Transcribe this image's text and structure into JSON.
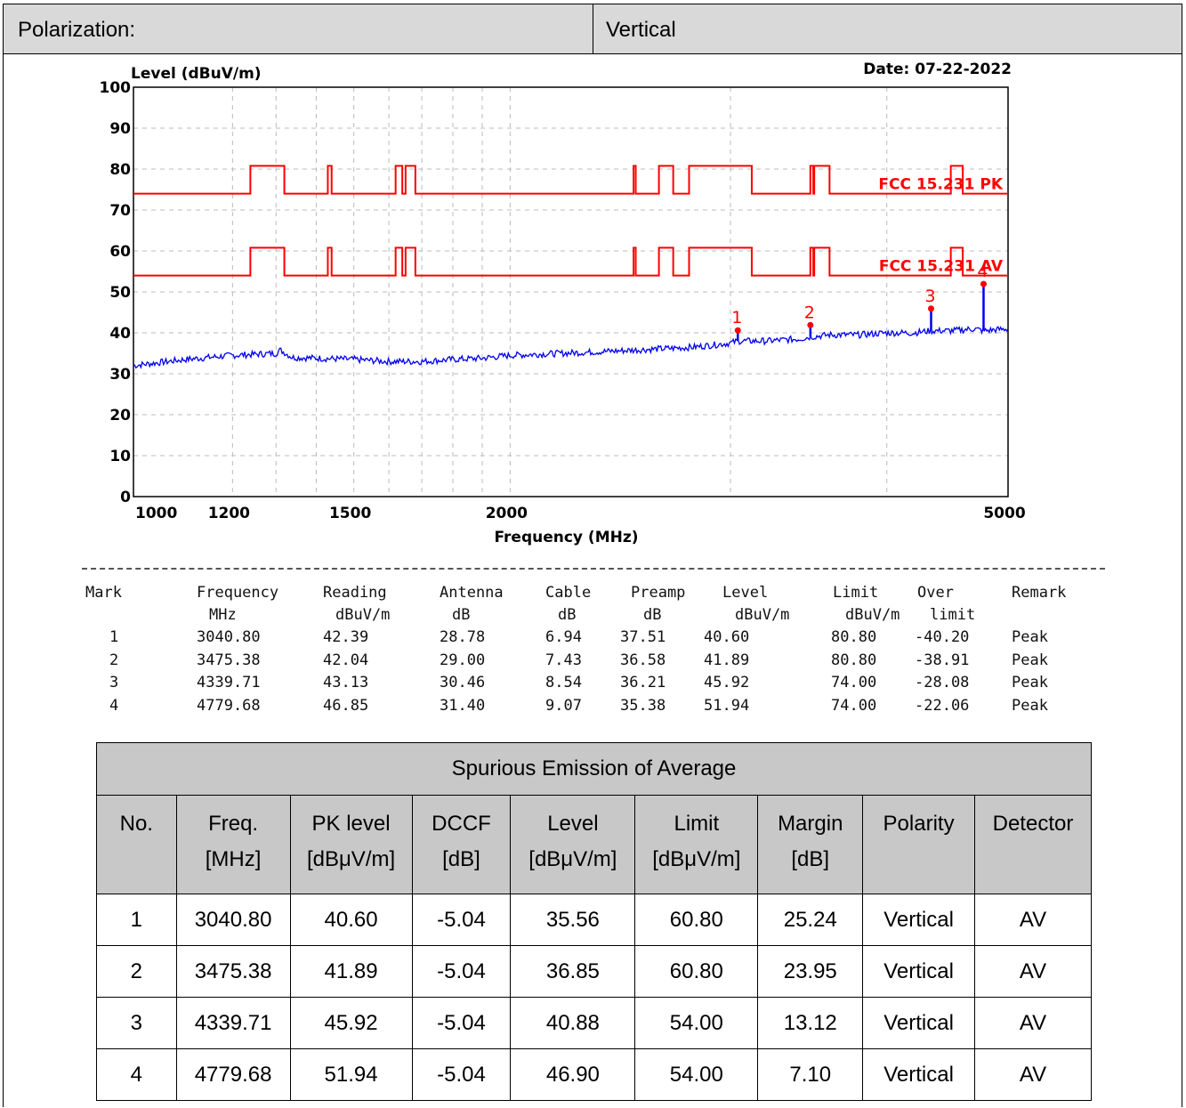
{
  "header": {
    "label": "Polarization:",
    "value": "Vertical"
  },
  "chart_data": {
    "type": "line",
    "ylabel": "Level (dBuV/m)",
    "xlabel": "Frequency (MHz)",
    "date": "Date: 07-22-2022",
    "xscale": "log",
    "xlim": [
      1000,
      5000
    ],
    "ylim": [
      0,
      100
    ],
    "grid": true,
    "yticks": [
      0,
      10,
      20,
      30,
      40,
      50,
      60,
      70,
      80,
      90,
      100
    ],
    "xtick_labels": [
      "1000",
      "1200",
      "1500",
      "2000",
      "5000"
    ],
    "xticks": [
      1000,
      1200,
      1500,
      2000,
      5000
    ],
    "xgrid": [
      1000,
      1200,
      1300,
      1400,
      1500,
      1600,
      1700,
      1800,
      1900,
      2000,
      3000,
      4000,
      5000
    ],
    "limit_pk_label": "FCC 15.231 PK",
    "limit_av_label": "FCC 15.231 AV",
    "colors": {
      "limit": "#ff0000",
      "trace": "#0000ee",
      "marker": "#ff0000"
    },
    "limit_pk": {
      "base": 74.0,
      "high": 80.8,
      "bands": [
        [
          1240,
          1320
        ],
        [
          1430,
          1440
        ],
        [
          1620,
          1640
        ],
        [
          1650,
          1680
        ],
        [
          2510,
          2520
        ],
        [
          2630,
          2700
        ],
        [
          2780,
          3120
        ],
        [
          3475,
          3494
        ],
        [
          3500,
          3600
        ],
        [
          4500,
          4600
        ]
      ],
      "dips": [
        [
          2320,
          2510
        ],
        [
          2520,
          2630
        ],
        [
          2700,
          2780
        ],
        [
          3120,
          3475
        ]
      ]
    },
    "trace": {
      "points": [
        [
          1000,
          32
        ],
        [
          1100,
          33.5
        ],
        [
          1200,
          34.5
        ],
        [
          1300,
          35
        ],
        [
          1310,
          35.8
        ],
        [
          1340,
          34
        ],
        [
          1500,
          33.5
        ],
        [
          1600,
          33
        ],
        [
          1700,
          33
        ],
        [
          1800,
          33.5
        ],
        [
          1900,
          33.8
        ],
        [
          2000,
          34.5
        ],
        [
          2200,
          35
        ],
        [
          2400,
          35.5
        ],
        [
          2600,
          36
        ],
        [
          2800,
          36.5
        ],
        [
          3000,
          37.5
        ],
        [
          3040,
          38
        ],
        [
          3200,
          38
        ],
        [
          3400,
          38.5
        ],
        [
          3475,
          39
        ],
        [
          3600,
          39.5
        ],
        [
          3800,
          39.5
        ],
        [
          4000,
          40
        ],
        [
          4200,
          40
        ],
        [
          4339,
          40.5
        ],
        [
          4500,
          40.5
        ],
        [
          4700,
          41
        ],
        [
          4779,
          40.5
        ],
        [
          5000,
          41
        ]
      ],
      "spikes": [
        [
          3040.8,
          40.6
        ],
        [
          3475.38,
          41.89
        ],
        [
          4339.71,
          45.92
        ],
        [
          4779.68,
          51.94
        ]
      ]
    },
    "markers": [
      {
        "label": "1",
        "freq": 3040.8,
        "level": 40.6
      },
      {
        "label": "2",
        "freq": 3475.38,
        "level": 41.89
      },
      {
        "label": "3",
        "freq": 4339.71,
        "level": 45.92
      },
      {
        "label": "4",
        "freq": 4779.68,
        "level": 51.94
      }
    ]
  },
  "mark_table": {
    "headers": [
      [
        "Mark",
        ""
      ],
      [
        "Frequency",
        "MHz"
      ],
      [
        "Reading",
        "dBuV/m"
      ],
      [
        "Antenna",
        "dB"
      ],
      [
        "Cable",
        "dB"
      ],
      [
        "Preamp",
        "dB"
      ],
      [
        "Level",
        "dBuV/m"
      ],
      [
        "Limit",
        "dBuV/m"
      ],
      [
        "Over",
        "limit"
      ],
      [
        "Remark",
        ""
      ]
    ],
    "rows": [
      [
        "1",
        "3040.80",
        "42.39",
        "28.78",
        "6.94",
        "37.51",
        "40.60",
        "80.80",
        "-40.20",
        "Peak"
      ],
      [
        "2",
        "3475.38",
        "42.04",
        "29.00",
        "7.43",
        "36.58",
        "41.89",
        "80.80",
        "-38.91",
        "Peak"
      ],
      [
        "3",
        "4339.71",
        "43.13",
        "30.46",
        "8.54",
        "36.21",
        "45.92",
        "74.00",
        "-28.08",
        "Peak"
      ],
      [
        "4",
        "4779.68",
        "46.85",
        "31.40",
        "9.07",
        "35.38",
        "51.94",
        "74.00",
        "-22.06",
        "Peak"
      ]
    ]
  },
  "avg_table": {
    "title": "Spurious Emission of Average",
    "headers": [
      [
        "No.",
        ""
      ],
      [
        "Freq.",
        "[MHz]"
      ],
      [
        "PK level",
        "[dBμV/m]"
      ],
      [
        "DCCF",
        "[dB]"
      ],
      [
        "Level",
        "[dBμV/m]"
      ],
      [
        "Limit",
        "[dBμV/m]"
      ],
      [
        "Margin",
        "[dB]"
      ],
      [
        "Polarity",
        ""
      ],
      [
        "Detector",
        ""
      ]
    ],
    "rows": [
      [
        "1",
        "3040.80",
        "40.60",
        "-5.04",
        "35.56",
        "60.80",
        "25.24",
        "Vertical",
        "AV"
      ],
      [
        "2",
        "3475.38",
        "41.89",
        "-5.04",
        "36.85",
        "60.80",
        "23.95",
        "Vertical",
        "AV"
      ],
      [
        "3",
        "4339.71",
        "45.92",
        "-5.04",
        "40.88",
        "54.00",
        "13.12",
        "Vertical",
        "AV"
      ],
      [
        "4",
        "4779.68",
        "51.94",
        "-5.04",
        "46.90",
        "54.00",
        "7.10",
        "Vertical",
        "AV"
      ]
    ]
  }
}
